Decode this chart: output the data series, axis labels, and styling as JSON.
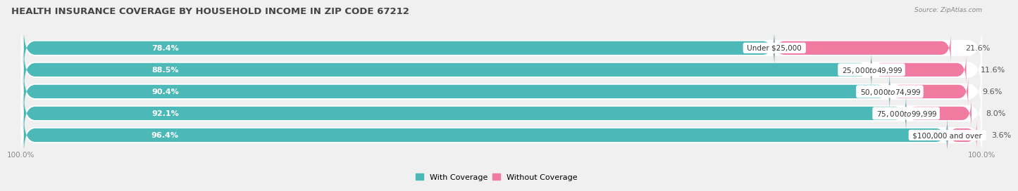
{
  "title": "HEALTH INSURANCE COVERAGE BY HOUSEHOLD INCOME IN ZIP CODE 67212",
  "source": "Source: ZipAtlas.com",
  "categories": [
    "Under $25,000",
    "$25,000 to $49,999",
    "$50,000 to $74,999",
    "$75,000 to $99,999",
    "$100,000 and over"
  ],
  "with_coverage": [
    78.4,
    88.5,
    90.4,
    92.1,
    96.4
  ],
  "without_coverage": [
    21.6,
    11.6,
    9.6,
    8.0,
    3.6
  ],
  "color_with": "#4db8b8",
  "color_without": "#f07aa0",
  "color_without_light": "#f9b8cc",
  "background_color": "#f0f0f0",
  "bar_background": "#e8e8e8",
  "title_fontsize": 9.5,
  "label_fontsize": 8,
  "pct_label_fontsize": 8,
  "tick_fontsize": 7.5,
  "legend_fontsize": 8,
  "bar_height": 0.62,
  "x_left_label": "100.0%",
  "x_right_label": "100.0%"
}
